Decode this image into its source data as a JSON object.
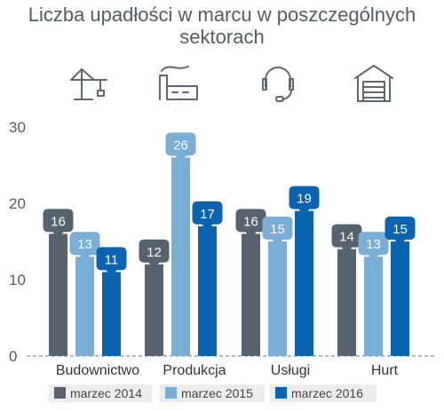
{
  "title": "Liczba upadłości w marcu w poszczególnych sektorach",
  "title_line1": "Liczba upadłości w marcu w poszczególnych",
  "title_line2": "sektorach",
  "colors": {
    "2014": "#56626e",
    "2015": "#7aaed5",
    "2016": "#0b64b0",
    "axis": "#9aa0a6",
    "icon": "#5f6770",
    "label_text": "#ffffff"
  },
  "icons": [
    "crane-icon",
    "factory-icon",
    "headset-icon",
    "warehouse-icon"
  ],
  "chart_data": {
    "type": "bar",
    "title": "Liczba upadłości w marcu w poszczególnych sektorach",
    "categories": [
      "Budownictwo",
      "Produkcja",
      "Usługi",
      "Hurt"
    ],
    "series": [
      {
        "name": "marzec 2014",
        "values": [
          16,
          12,
          16,
          14
        ]
      },
      {
        "name": "marzec 2015",
        "values": [
          13,
          26,
          15,
          13
        ]
      },
      {
        "name": "marzec 2016",
        "values": [
          11,
          17,
          19,
          15
        ]
      }
    ],
    "ylim": [
      0,
      30
    ],
    "yticks": [
      0,
      10,
      20,
      30
    ],
    "data_labels": true,
    "legend": "bottom",
    "grid": false
  }
}
